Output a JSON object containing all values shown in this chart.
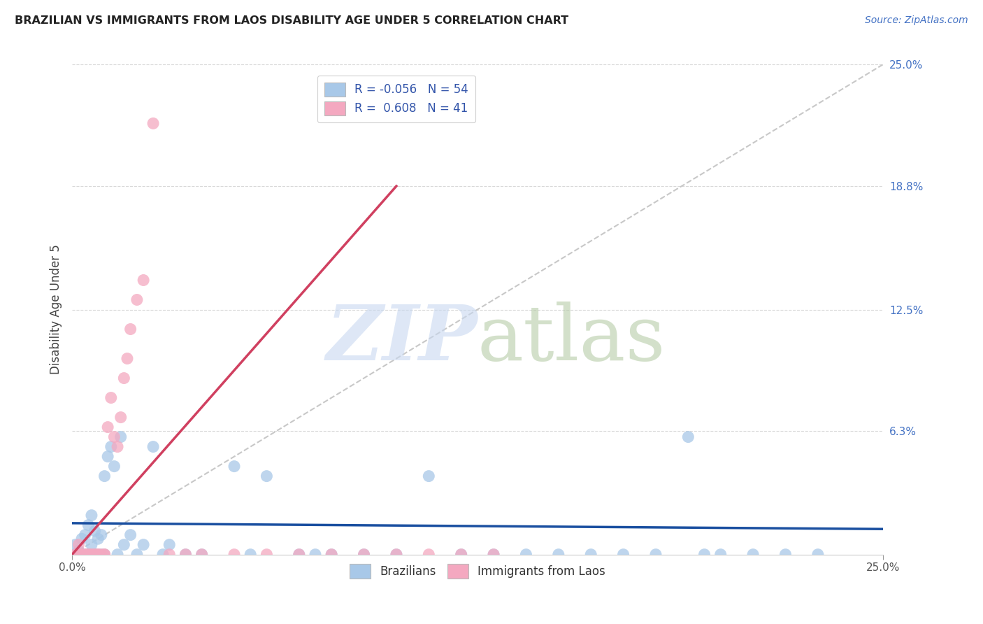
{
  "title": "BRAZILIAN VS IMMIGRANTS FROM LAOS DISABILITY AGE UNDER 5 CORRELATION CHART",
  "source": "Source: ZipAtlas.com",
  "ylabel": "Disability Age Under 5",
  "x_min": 0.0,
  "x_max": 0.25,
  "y_min": 0.0,
  "y_max": 0.25,
  "y_tick_labels_right": [
    "25.0%",
    "18.8%",
    "12.5%",
    "6.3%"
  ],
  "y_tick_vals_right": [
    0.25,
    0.188,
    0.125,
    0.063
  ],
  "brazilian_color": "#a8c8e8",
  "laos_color": "#f4a8c0",
  "trendline_brazilian_color": "#1a4fa0",
  "trendline_laos_color": "#d04060",
  "diagonal_color": "#c8c8c8",
  "R_brazilian": -0.056,
  "R_laos": 0.608,
  "N_brazilian": 54,
  "N_laos": 41,
  "braz_trend_x": [
    0.0,
    0.25
  ],
  "braz_trend_y": [
    0.016,
    0.013
  ],
  "laos_trend_x": [
    0.0,
    0.1
  ],
  "laos_trend_y": [
    0.0,
    0.188
  ],
  "brazilians_x": [
    0.001,
    0.002,
    0.003,
    0.003,
    0.004,
    0.004,
    0.005,
    0.005,
    0.006,
    0.006,
    0.007,
    0.007,
    0.008,
    0.008,
    0.009,
    0.009,
    0.01,
    0.01,
    0.011,
    0.012,
    0.013,
    0.014,
    0.015,
    0.016,
    0.018,
    0.02,
    0.022,
    0.025,
    0.028,
    0.03,
    0.035,
    0.04,
    0.05,
    0.055,
    0.06,
    0.07,
    0.075,
    0.08,
    0.09,
    0.1,
    0.11,
    0.12,
    0.13,
    0.14,
    0.15,
    0.16,
    0.17,
    0.18,
    0.19,
    0.2,
    0.21,
    0.22,
    0.23,
    0.195
  ],
  "brazilians_y": [
    0.005,
    0.002,
    0.008,
    0.0,
    0.01,
    0.0,
    0.015,
    0.0,
    0.02,
    0.005,
    0.012,
    0.0,
    0.008,
    0.0,
    0.01,
    0.0,
    0.04,
    0.0,
    0.05,
    0.055,
    0.045,
    0.0,
    0.06,
    0.005,
    0.01,
    0.0,
    0.005,
    0.055,
    0.0,
    0.005,
    0.0,
    0.0,
    0.045,
    0.0,
    0.04,
    0.0,
    0.0,
    0.0,
    0.0,
    0.0,
    0.04,
    0.0,
    0.0,
    0.0,
    0.0,
    0.0,
    0.0,
    0.0,
    0.06,
    0.0,
    0.0,
    0.0,
    0.0,
    0.0
  ],
  "laos_x": [
    0.001,
    0.002,
    0.002,
    0.003,
    0.003,
    0.004,
    0.004,
    0.005,
    0.005,
    0.006,
    0.006,
    0.007,
    0.007,
    0.008,
    0.008,
    0.009,
    0.01,
    0.01,
    0.011,
    0.012,
    0.013,
    0.014,
    0.015,
    0.016,
    0.017,
    0.018,
    0.02,
    0.022,
    0.025,
    0.03,
    0.035,
    0.04,
    0.05,
    0.06,
    0.07,
    0.08,
    0.09,
    0.1,
    0.11,
    0.12,
    0.13
  ],
  "laos_y": [
    0.0,
    0.0,
    0.005,
    0.0,
    0.0,
    0.0,
    0.0,
    0.0,
    0.0,
    0.0,
    0.0,
    0.0,
    0.0,
    0.0,
    0.0,
    0.0,
    0.0,
    0.0,
    0.065,
    0.08,
    0.06,
    0.055,
    0.07,
    0.09,
    0.1,
    0.115,
    0.13,
    0.14,
    0.22,
    0.0,
    0.0,
    0.0,
    0.0,
    0.0,
    0.0,
    0.0,
    0.0,
    0.0,
    0.0,
    0.0,
    0.0
  ]
}
